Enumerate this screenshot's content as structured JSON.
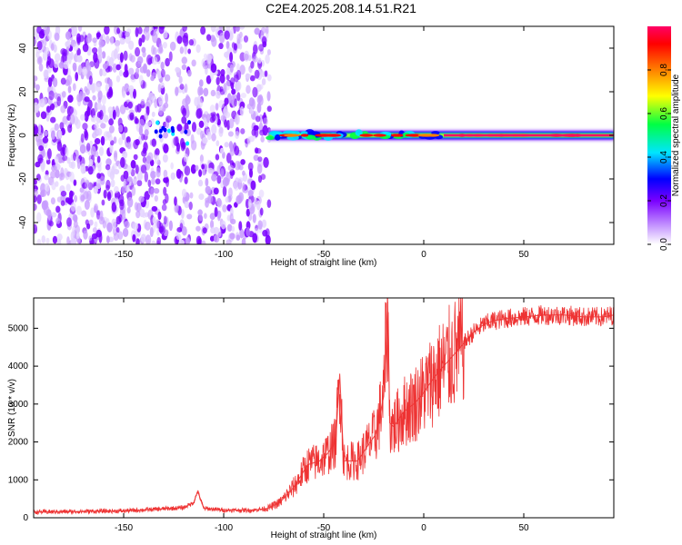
{
  "figure": {
    "title": "C2E4.2025.208.14.51.R21"
  },
  "chart_data": [
    {
      "type": "heatmap",
      "xlabel": "Height of straight line (km)",
      "ylabel": "Frequency (Hz)",
      "xlim": [
        -195,
        95
      ],
      "ylim": [
        -50,
        50
      ],
      "x_ticks": [
        -150,
        -100,
        -50,
        0,
        50
      ],
      "y_ticks": [
        -40,
        -20,
        0,
        20,
        40
      ],
      "colorbar": {
        "label": "Normalized spectral amplitude",
        "range": [
          0,
          1
        ],
        "ticks": [
          0,
          0.2,
          0.4,
          0.6,
          0.8
        ],
        "colormap": [
          "#ffffff",
          "#c89cff",
          "#7a00ff",
          "#0000ff",
          "#00e5ff",
          "#00ff44",
          "#ffff00",
          "#ff8000",
          "#ff0000",
          "#ff0066"
        ]
      },
      "regions": [
        {
          "name": "noise",
          "x_range": [
            -195,
            -77
          ],
          "freq_range": [
            -50,
            50
          ],
          "amplitude": 0.15
        },
        {
          "name": "signal",
          "x_range": [
            -77,
            95
          ],
          "center_freq": 0,
          "amplitude": 0.95
        }
      ]
    },
    {
      "type": "line",
      "xlabel": "Height of straight line (km)",
      "ylabel": "SNR (10 * v/v)",
      "xlim": [
        -195,
        95
      ],
      "ylim": [
        0,
        5800
      ],
      "x_ticks": [
        -150,
        -100,
        -50,
        0,
        50
      ],
      "y_ticks": [
        0,
        1000,
        2000,
        3000,
        4000,
        5000
      ],
      "color": "#ee3333",
      "series": [
        {
          "x": [
            -195,
            -150,
            -125,
            -120,
            -115,
            -113,
            -110,
            -100,
            -85,
            -78,
            -72,
            -65,
            -58,
            -52,
            -48,
            -44,
            -42,
            -40,
            -37,
            -33,
            -28,
            -24,
            -20,
            -18,
            -17,
            -15,
            -10,
            -5,
            0,
            5,
            10,
            15,
            20,
            25,
            30,
            35,
            40,
            50,
            60,
            70,
            80,
            90,
            95
          ],
          "y": [
            150,
            180,
            250,
            270,
            400,
            700,
            250,
            200,
            200,
            250,
            400,
            800,
            1400,
            1500,
            1700,
            2000,
            3800,
            1500,
            1500,
            1500,
            1900,
            2200,
            3200,
            5700,
            2500,
            2400,
            2800,
            3000,
            3300,
            3700,
            4000,
            4300,
            4600,
            4900,
            5100,
            5200,
            5250,
            5300,
            5350,
            5350,
            5300,
            5300,
            5350
          ]
        }
      ]
    }
  ]
}
